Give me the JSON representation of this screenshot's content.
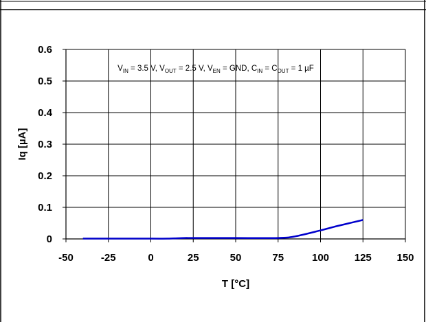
{
  "chart_data": {
    "type": "line",
    "title": "",
    "xlabel": "T [°C]",
    "ylabel": "Iq [µA]",
    "xlim": [
      -50,
      150
    ],
    "ylim": [
      0,
      0.6
    ],
    "x_ticks": [
      "-50",
      "-25",
      "0",
      "25",
      "50",
      "75",
      "100",
      "125",
      "150"
    ],
    "y_ticks": [
      "0",
      "0.1",
      "0.2",
      "0.3",
      "0.4",
      "0.5",
      "0.6"
    ],
    "grid": true,
    "line_color": "#0000cc",
    "annotation": {
      "parts": [
        {
          "text": "V",
          "sub": false
        },
        {
          "text": "IN",
          "sub": true
        },
        {
          "text": " = 3.5 V, V",
          "sub": false
        },
        {
          "text": "OUT",
          "sub": true
        },
        {
          "text": " = 2.5 V, V",
          "sub": false
        },
        {
          "text": "EN",
          "sub": true
        },
        {
          "text": " = GND, C",
          "sub": false
        },
        {
          "text": "IN",
          "sub": true
        },
        {
          "text": " = C",
          "sub": false
        },
        {
          "text": "OUT",
          "sub": true
        },
        {
          "text": " = 1 µF",
          "sub": false
        }
      ]
    },
    "series": [
      {
        "x": [
          -40,
          -25,
          0,
          10,
          20,
          25,
          50,
          75,
          85,
          100,
          110,
          125
        ],
        "y": [
          0.001,
          0.001,
          0.001,
          0.001,
          0.003,
          0.003,
          0.003,
          0.003,
          0.008,
          0.027,
          0.041,
          0.06
        ]
      }
    ]
  }
}
